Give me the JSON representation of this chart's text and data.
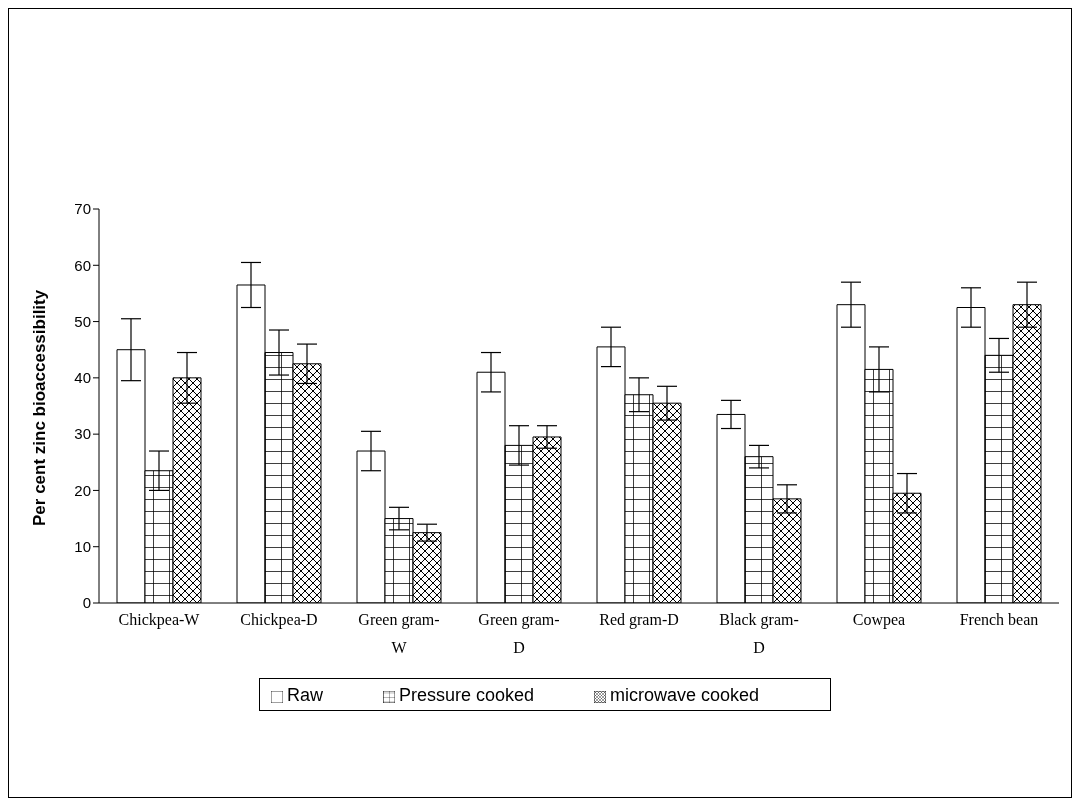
{
  "chart_data": {
    "type": "bar",
    "ylabel": "Per cent zinc bioaccessibility",
    "categories": [
      "Chickpea-W",
      "Chickpea-D",
      "Green gram-W",
      "Green gram-D",
      "Red gram-D",
      "Black gram-D",
      "Cowpea",
      "French bean"
    ],
    "series": [
      {
        "name": "Raw",
        "color": "#000000",
        "values": [
          45,
          56.5,
          27,
          41,
          45.5,
          33.5,
          53,
          52.5
        ],
        "errors": [
          5.5,
          4,
          3.5,
          3.5,
          3.5,
          2.5,
          4,
          3.5
        ]
      },
      {
        "name": "Pressure cooked",
        "color": "#000000",
        "values": [
          23.5,
          44.5,
          15,
          28,
          37,
          26,
          41.5,
          44
        ],
        "errors": [
          3.5,
          4,
          2,
          3.5,
          3,
          2,
          4,
          3
        ]
      },
      {
        "name": "microwave cooked",
        "color": "#000000",
        "values": [
          40,
          42.5,
          12.5,
          29.5,
          35.5,
          18.5,
          19.5,
          53
        ],
        "errors": [
          4.5,
          3.5,
          1.5,
          2,
          3,
          2.5,
          3.5,
          4
        ]
      }
    ],
    "ylim": [
      0,
      70
    ],
    "yticks": [
      0,
      10,
      20,
      30,
      40,
      50,
      60,
      70
    ],
    "grid": false,
    "legend": "bottom"
  }
}
